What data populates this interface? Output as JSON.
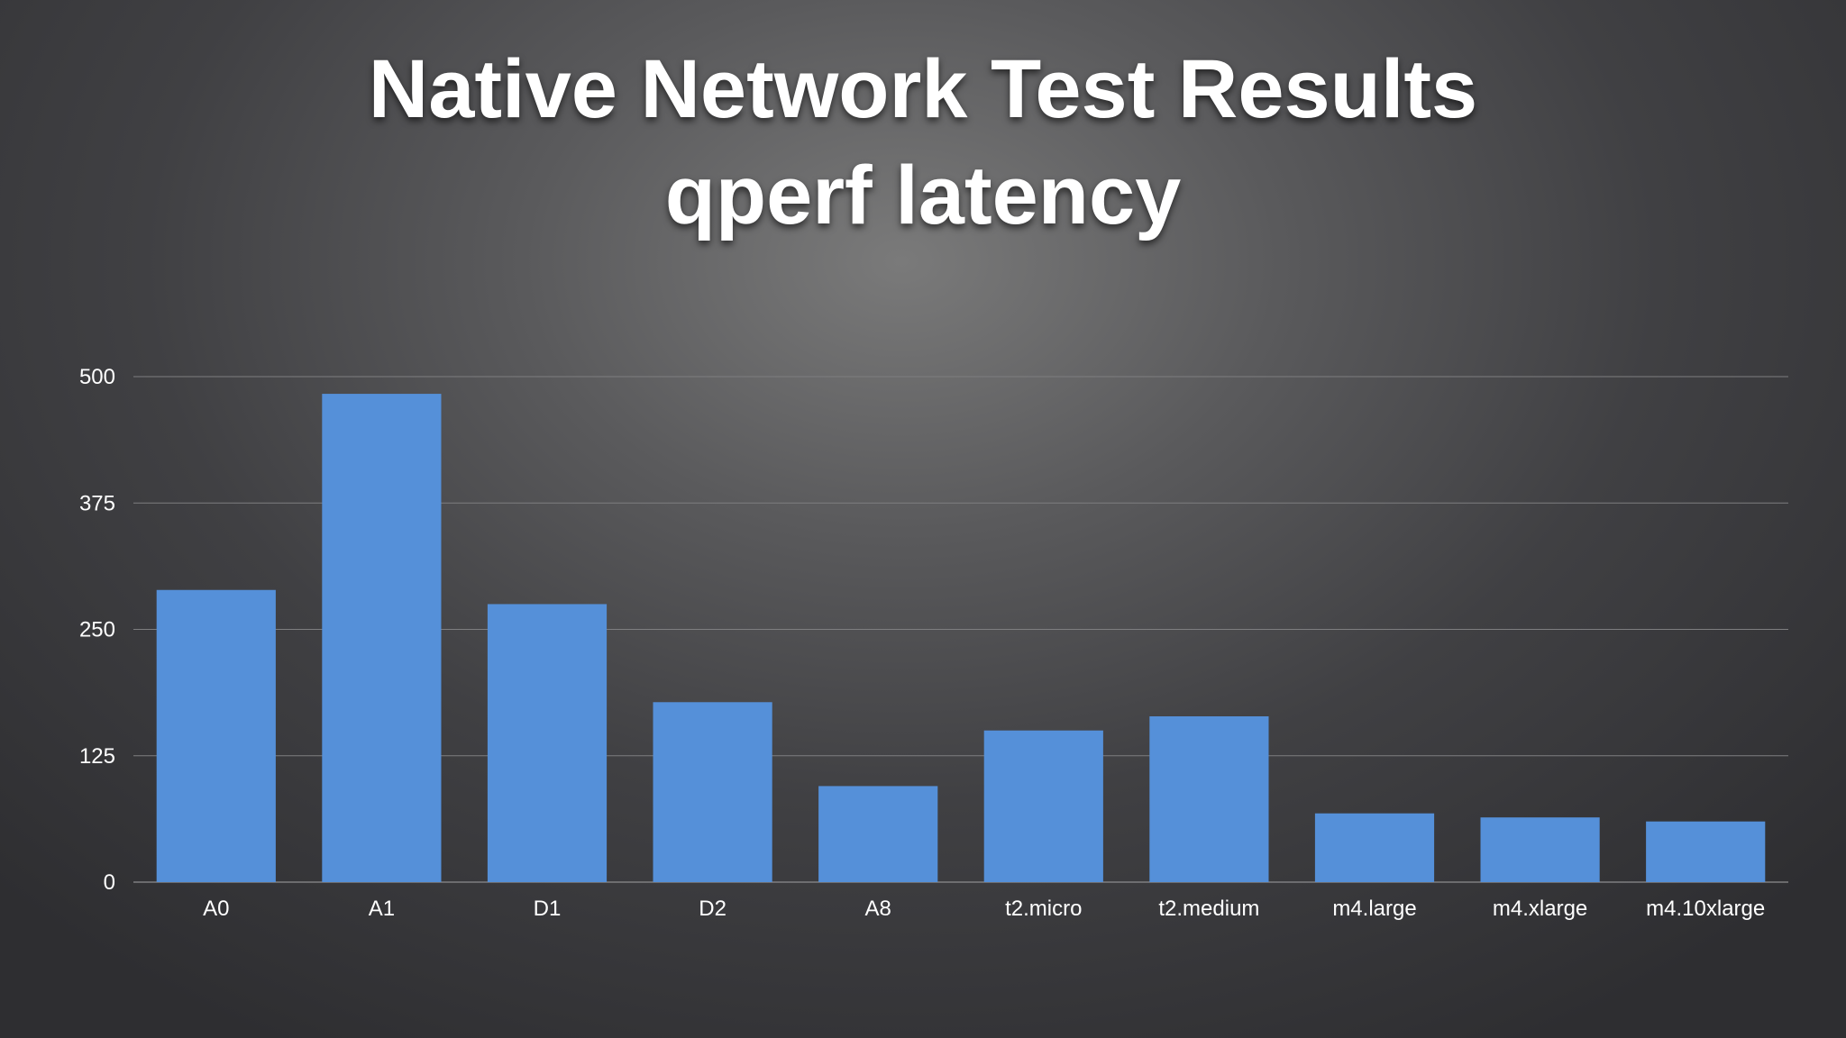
{
  "title_line1": "Native Network Test Results",
  "title_line2": "qperf latency",
  "chart_data": {
    "type": "bar",
    "title": "Native Network Test Results qperf latency",
    "categories": [
      "A0",
      "A1",
      "D1",
      "D2",
      "A8",
      "t2.micro",
      "t2.medium",
      "m4.large",
      "m4.xlarge",
      "m4.10xlarge"
    ],
    "values": [
      289,
      483,
      275,
      178,
      95,
      150,
      164,
      68,
      64,
      60
    ],
    "xlabel": "",
    "ylabel": "",
    "ylim": [
      0,
      500
    ],
    "yticks": [
      0,
      125,
      250,
      375,
      500
    ],
    "grid": true,
    "legend": "none",
    "bar_color": "#5590d9",
    "gridline_color": "#7e7e80"
  }
}
